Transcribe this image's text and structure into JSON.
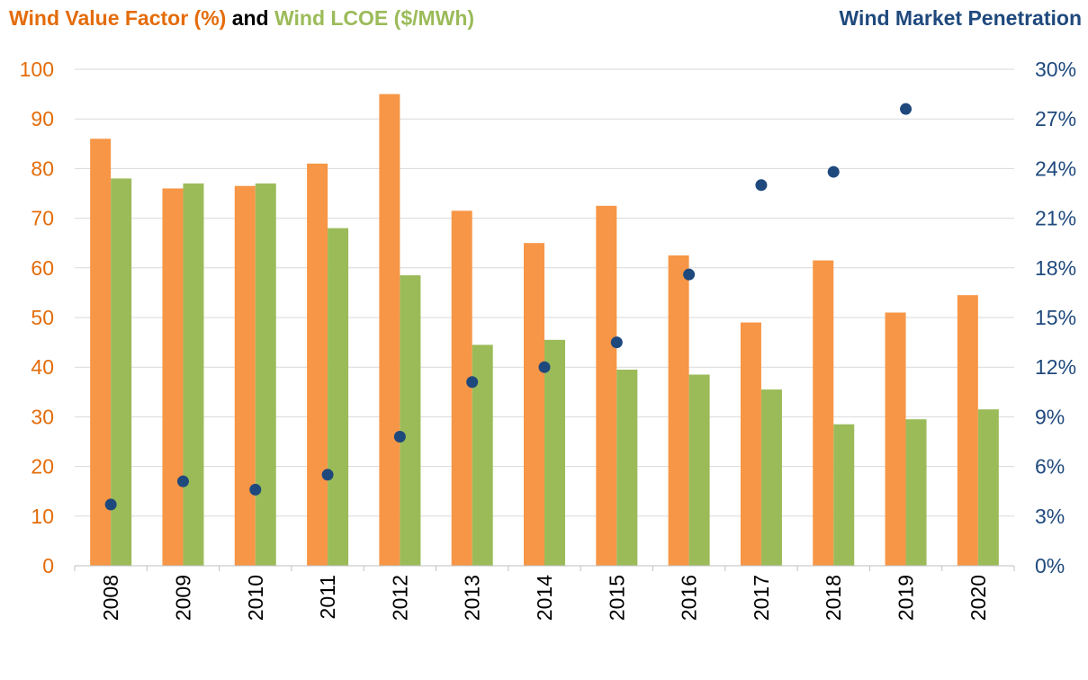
{
  "chart_data": {
    "type": "bar",
    "title_left": {
      "part1": "Wind Value Factor (%)",
      "part2": " and ",
      "part3": "Wind LCOE ($/MWh)"
    },
    "title_right": "Wind Market Penetration",
    "categories": [
      "2008",
      "2009",
      "2010",
      "2011",
      "2012",
      "2013",
      "2014",
      "2015",
      "2016",
      "2017",
      "2018",
      "2019",
      "2020"
    ],
    "series": [
      {
        "name": "Wind Value Factor (%)",
        "axis": "left",
        "kind": "bar",
        "color": "#F79646",
        "values": [
          86,
          76,
          76.5,
          81,
          95,
          71.5,
          65,
          72.5,
          62.5,
          49,
          61.5,
          51,
          54.5
        ]
      },
      {
        "name": "Wind LCOE ($/MWh)",
        "axis": "left",
        "kind": "bar",
        "color": "#9BBB59",
        "values": [
          78,
          77,
          77,
          68,
          58.5,
          44.5,
          45.5,
          39.5,
          38.5,
          35.5,
          28.5,
          29.5,
          31.5
        ]
      },
      {
        "name": "Wind Market Penetration",
        "axis": "right",
        "kind": "scatter",
        "color": "#1F497D",
        "values": [
          3.7,
          5.1,
          4.6,
          5.5,
          7.8,
          11.1,
          12.0,
          13.5,
          17.6,
          23.0,
          23.8,
          27.6,
          null
        ]
      }
    ],
    "left_axis": {
      "ylim": [
        0,
        100
      ],
      "ticks": [
        "0",
        "10",
        "20",
        "30",
        "40",
        "50",
        "60",
        "70",
        "80",
        "90",
        "100"
      ],
      "color": "#E46C0A"
    },
    "right_axis": {
      "ylim": [
        0,
        30
      ],
      "ticks": [
        "0%",
        "3%",
        "6%",
        "9%",
        "12%",
        "15%",
        "18%",
        "21%",
        "24%",
        "27%",
        "30%"
      ],
      "color": "#1F497D"
    },
    "colors": {
      "title_orange": "#E46C0A",
      "title_green": "#9BBB59",
      "title_black": "#000000",
      "title_navy": "#1F497D",
      "grid": "#D9D9D9",
      "axis": "#BFBFBF"
    },
    "grid": true,
    "legend": "none"
  }
}
